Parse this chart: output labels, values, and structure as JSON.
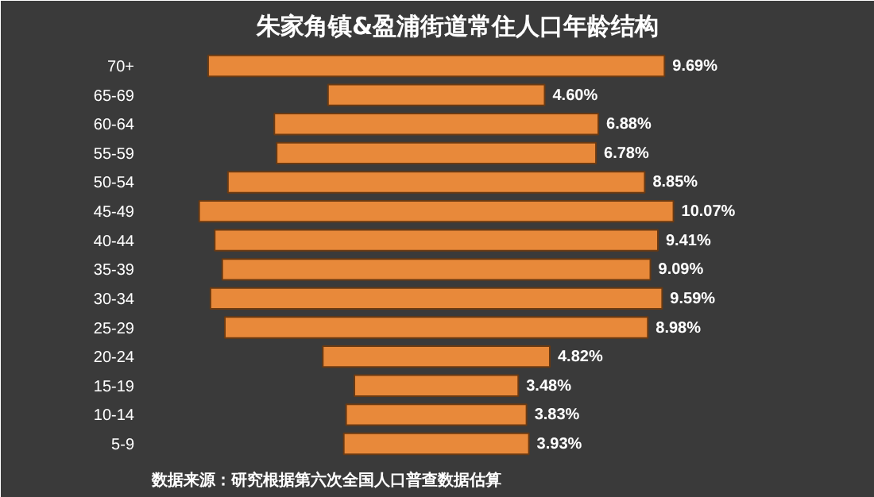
{
  "chart_data": {
    "type": "other",
    "title": "朱家角镇&盈浦街道常住人口年龄结构",
    "categories": [
      "70+",
      "65-69",
      "60-64",
      "55-59",
      "50-54",
      "45-49",
      "40-44",
      "35-39",
      "30-34",
      "25-29",
      "20-24",
      "15-19",
      "10-14",
      "5-9"
    ],
    "values": [
      9.69,
      4.6,
      6.88,
      6.78,
      8.85,
      10.07,
      9.41,
      9.09,
      9.59,
      8.98,
      4.82,
      3.48,
      3.83,
      3.93
    ],
    "value_labels": [
      "9.69%",
      "4.60%",
      "6.88%",
      "6.78%",
      "8.85%",
      "10.07%",
      "9.41%",
      "9.09%",
      "9.59%",
      "8.98%",
      "4.82%",
      "3.48%",
      "3.83%",
      "3.93%"
    ],
    "color": "#e8893a",
    "annotations": [
      "数据来源：研究根据第六次全国人口普查数据估算"
    ]
  }
}
